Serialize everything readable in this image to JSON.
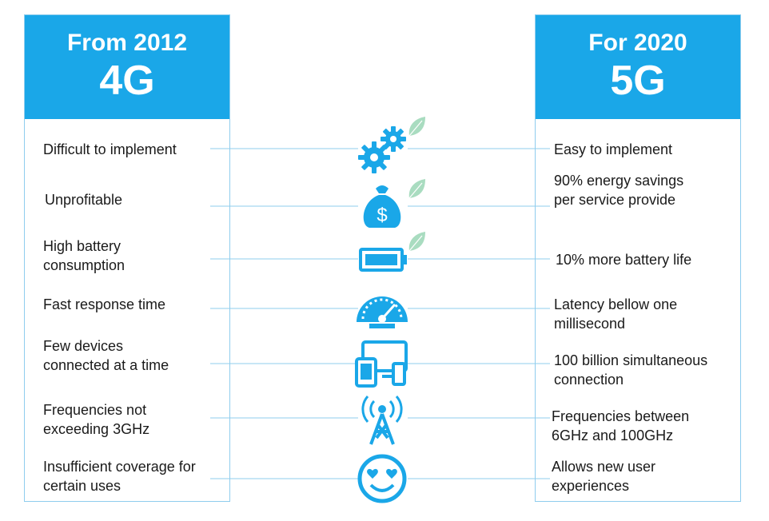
{
  "left": {
    "subtitle": "From 2012",
    "generation": "4G"
  },
  "right": {
    "subtitle": "For 2020",
    "generation": "5G"
  },
  "rows": [
    {
      "left": "Difficult to implement",
      "right": "Easy to implement",
      "icon": "gears-icon",
      "leaf": true
    },
    {
      "left": "Unprofitable",
      "right": "90% energy savings\nper service provide",
      "icon": "money-bag-icon",
      "leaf": true
    },
    {
      "left": "High battery\nconsumption",
      "right": "10% more battery life",
      "icon": "battery-icon",
      "leaf": true
    },
    {
      "left": "Fast response time",
      "right": "Latency bellow one\nmillisecond",
      "icon": "speedometer-icon",
      "leaf": false
    },
    {
      "left": "Few devices\nconnected at a time",
      "right": "100 billion simultaneous\nconnection",
      "icon": "devices-icon",
      "leaf": false
    },
    {
      "left": "Frequencies not\nexceeding 3GHz",
      "right": "Frequencies between\n6GHz and 100GHz",
      "icon": "antenna-icon",
      "leaf": false
    },
    {
      "left": "Insufficient coverage for\ncertain uses",
      "right": "Allows new user\nexperiences",
      "icon": "smiley-icon",
      "leaf": false
    }
  ],
  "colors": {
    "accent": "#1aa7e8",
    "line": "#8fcdee",
    "leaf": "#a9dcc0"
  }
}
